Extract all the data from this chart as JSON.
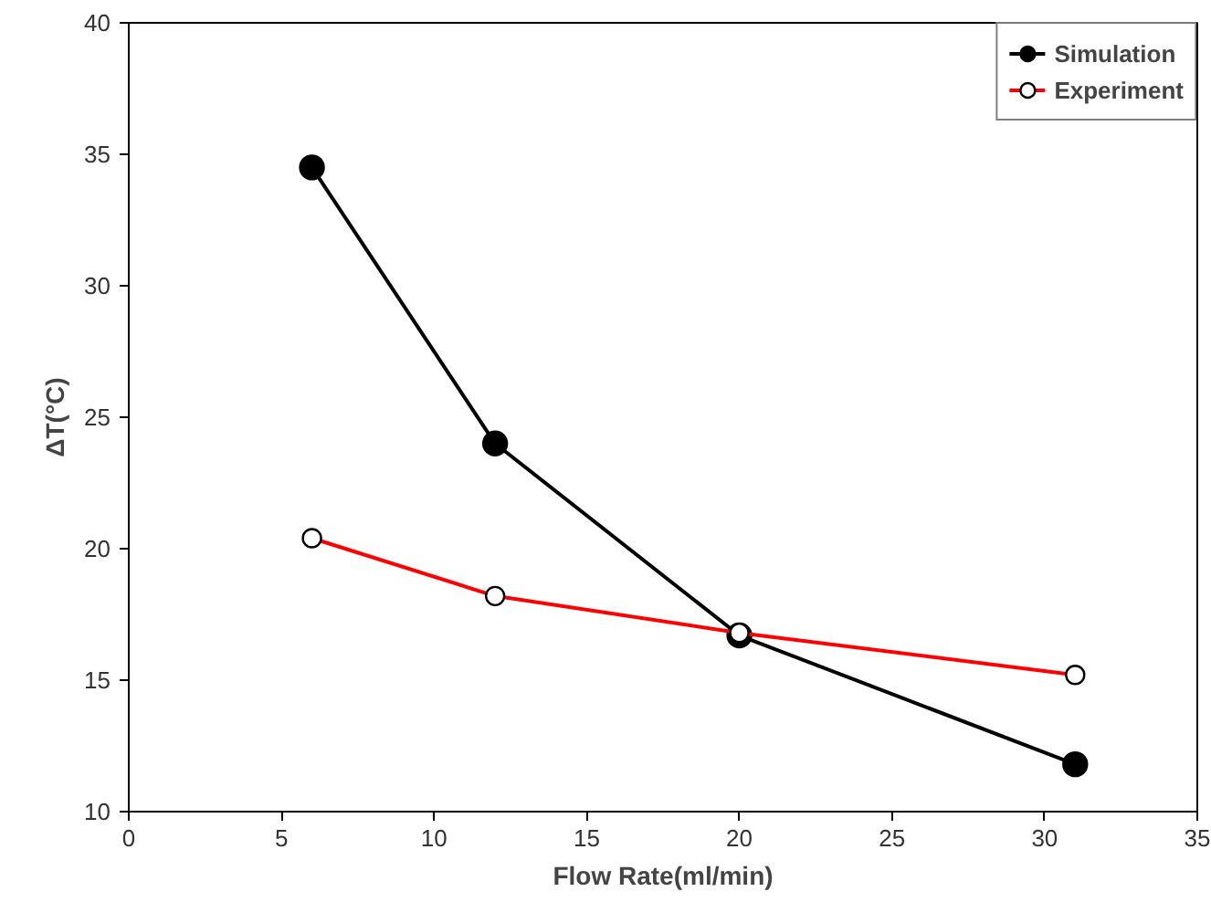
{
  "chart_data": {
    "type": "line",
    "xlabel": "Flow Rate(ml/min)",
    "ylabel": "ΔT(°C)",
    "x": [
      6,
      12,
      20,
      31
    ],
    "series": [
      {
        "name": "Simulation",
        "color": "#000000",
        "values": [
          34.5,
          24.0,
          16.7,
          11.8
        ]
      },
      {
        "name": "Experiment",
        "color": "#ff0000",
        "values": [
          20.4,
          18.2,
          16.8,
          15.2
        ]
      }
    ],
    "xlim": [
      0,
      35
    ],
    "xticks": [
      0,
      5,
      10,
      15,
      20,
      25,
      30,
      35
    ],
    "ylim": [
      10,
      40
    ],
    "yticks": [
      10,
      15,
      20,
      25,
      30,
      35,
      40
    ],
    "grid": false,
    "legend": "top right",
    "marker": "circle",
    "line_style": "solid"
  }
}
